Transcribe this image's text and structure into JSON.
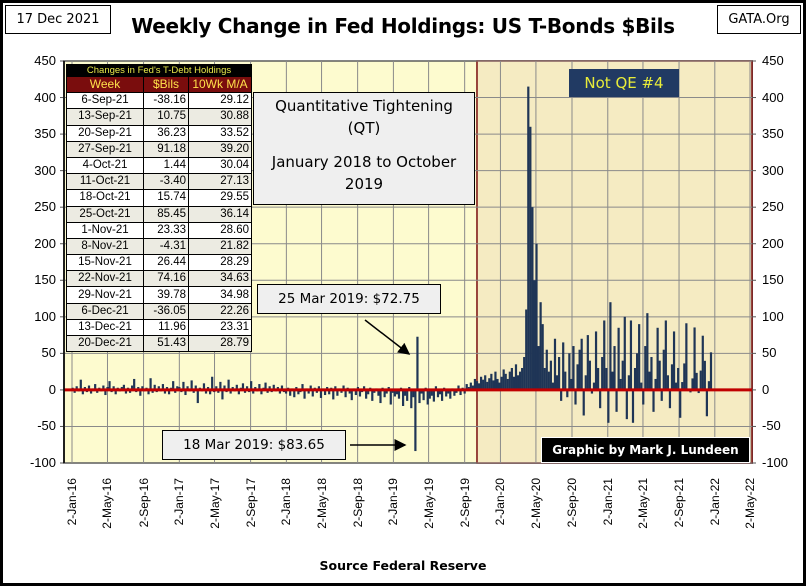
{
  "header": {
    "date": "17 Dec 2021",
    "title": "Weekly Change in Fed Holdings: US T-Bonds $Bils",
    "site": "GATA.Org"
  },
  "footer": {
    "source": "Source Federal Reserve"
  },
  "table": {
    "caption": "Changes in Fed's T-Debt Holdings",
    "columns": [
      "Week",
      "$Bils",
      "10Wk M/A"
    ],
    "rows": [
      [
        "6-Sep-21",
        "-38.16",
        "29.12"
      ],
      [
        "13-Sep-21",
        "10.75",
        "30.88"
      ],
      [
        "20-Sep-21",
        "36.23",
        "33.52"
      ],
      [
        "27-Sep-21",
        "91.18",
        "39.20"
      ],
      [
        "4-Oct-21",
        "1.44",
        "30.04"
      ],
      [
        "11-Oct-21",
        "-3.40",
        "27.13"
      ],
      [
        "18-Oct-21",
        "15.74",
        "29.55"
      ],
      [
        "25-Oct-21",
        "85.45",
        "36.14"
      ],
      [
        "1-Nov-21",
        "23.33",
        "28.60"
      ],
      [
        "8-Nov-21",
        "-4.31",
        "21.82"
      ],
      [
        "15-Nov-21",
        "26.44",
        "28.29"
      ],
      [
        "22-Nov-21",
        "74.16",
        "34.63"
      ],
      [
        "29-Nov-21",
        "39.78",
        "34.98"
      ],
      [
        "6-Dec-21",
        "-36.05",
        "22.26"
      ],
      [
        "13-Dec-21",
        "11.96",
        "23.31"
      ],
      [
        "20-Dec-21",
        "51.43",
        "28.79"
      ]
    ]
  },
  "annotations": {
    "qt_line1": "Quantitative Tightening",
    "qt_line2": "(QT)",
    "qt_line3": "January 2018 to October",
    "qt_line4": "2019",
    "mar25": "25 Mar 2019: $72.75",
    "mar18": "18 Mar 2019: $83.65",
    "not_qe": "Not QE #4",
    "credit": "Graphic by Mark J. Lundeen"
  },
  "colors": {
    "bar": "#1f3556",
    "zero_line": "#c00000",
    "plot_bg": "#fdfbcf",
    "shaded_bg": "#f5ebc2",
    "shaded_border": "#7a0d0d",
    "qe_box": "#213a63",
    "qe_text": "#e8ec3a"
  },
  "chart_data": {
    "type": "bar",
    "title": "Weekly Change in Fed Holdings: US T-Bonds $Bils",
    "xlabel": "Source Federal Reserve",
    "ylim": [
      -100,
      450
    ],
    "yticks": [
      "450",
      "400",
      "350",
      "300",
      "250",
      "200",
      "150",
      "100",
      "50",
      "0",
      "-50",
      "-100"
    ],
    "xticks": [
      "2-Jan-16",
      "2-May-16",
      "2-Sep-16",
      "2-Jan-17",
      "2-May-17",
      "2-Sep-17",
      "2-Jan-18",
      "2-May-18",
      "2-Sep-18",
      "2-Jan-19",
      "2-May-19",
      "2-Sep-19",
      "2-Jan-20",
      "2-May-20",
      "2-Sep-20",
      "2-Jan-21",
      "2-May-21",
      "2-Sep-21",
      "2-Jan-22",
      "2-May-22"
    ],
    "grid": true,
    "shaded_region": {
      "label": "Not QE #4",
      "from": "2019-10-14",
      "to": "2022-05-02"
    },
    "x_start": "2016-01-04",
    "x_interval": "weekly",
    "values": [
      3,
      -4,
      5,
      -2,
      14,
      -6,
      4,
      -3,
      6,
      -5,
      2,
      8,
      -4,
      3,
      -2,
      6,
      -7,
      4,
      12,
      -3,
      5,
      -6,
      3,
      -2,
      4,
      7,
      -5,
      3,
      -4,
      6,
      15,
      -3,
      4,
      -8,
      5,
      -2,
      3,
      -6,
      16,
      -4,
      7,
      -3,
      5,
      -2,
      8,
      -5,
      4,
      -6,
      3,
      12,
      -4,
      5,
      4,
      -3,
      11,
      -7,
      5,
      -2,
      13,
      -4,
      6,
      -18,
      3,
      -2,
      9,
      -5,
      4,
      -6,
      18,
      -3,
      5,
      -4,
      11,
      -13,
      6,
      -3,
      14,
      -5,
      4,
      -2,
      7,
      -6,
      3,
      9,
      -4,
      5,
      -3,
      12,
      -5,
      4,
      -2,
      8,
      -6,
      3,
      10,
      -4,
      5,
      -3,
      7,
      -2,
      4,
      -5,
      6,
      -3,
      -5,
      3,
      -8,
      2,
      -10,
      4,
      -6,
      -3,
      8,
      -12,
      2,
      -5,
      6,
      -9,
      3,
      -4,
      5,
      -11,
      2,
      -7,
      4,
      -6,
      3,
      -13,
      5,
      -8,
      2,
      -4,
      6,
      -10,
      3,
      -5,
      -14,
      2,
      -7,
      4,
      -9,
      -3,
      5,
      -12,
      -6,
      3,
      -15,
      -4,
      2,
      -8,
      -18,
      3,
      -10,
      -5,
      4,
      -20,
      -4,
      -9,
      -6,
      -12,
      3,
      -22,
      -8,
      -15,
      4,
      -25,
      -10,
      -83.65,
      72.75,
      -18,
      -5,
      -14,
      3,
      -20,
      -12,
      -8,
      -16,
      5,
      -10,
      -6,
      -15,
      3,
      -9,
      -5,
      -12,
      2,
      -8,
      -4,
      6,
      -7,
      3,
      -5,
      8,
      4,
      10,
      6,
      15,
      12,
      9,
      18,
      14,
      20,
      11,
      16,
      22,
      13,
      25,
      15,
      10,
      18,
      28,
      22,
      15,
      25,
      30,
      18,
      35,
      20,
      25,
      30,
      45,
      110,
      415,
      360,
      250,
      150,
      200,
      60,
      120,
      90,
      30,
      55,
      25,
      40,
      10,
      70,
      20,
      45,
      -15,
      65,
      25,
      -10,
      50,
      15,
      60,
      -20,
      35,
      55,
      70,
      -35,
      20,
      75,
      40,
      -5,
      10,
      80,
      30,
      -25,
      45,
      95,
      30,
      -45,
      120,
      25,
      60,
      -30,
      85,
      15,
      40,
      100,
      -40,
      20,
      95,
      -45,
      30,
      50,
      90,
      10,
      -20,
      60,
      105,
      25,
      45,
      -30,
      15,
      85,
      40,
      -15,
      55,
      95,
      20,
      -25,
      35,
      80,
      10,
      30,
      -38.16,
      10.75,
      36.23,
      91.18,
      1.44,
      -3.4,
      15.74,
      85.45,
      23.33,
      -4.31,
      26.44,
      74.16,
      39.78,
      -36.05,
      11.96,
      51.43
    ]
  }
}
